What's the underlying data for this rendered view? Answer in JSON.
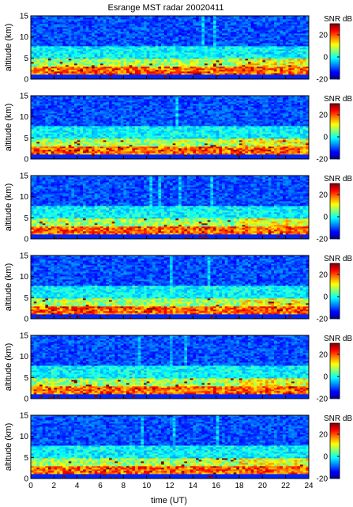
{
  "chart_data": {
    "type": "heatmap",
    "title": "Esrange MST radar 20020411",
    "xlabel": "time (UT)",
    "ylabel": "altitude (km)",
    "xlim": [
      0,
      24
    ],
    "ylim": [
      0,
      15
    ],
    "x_ticks": [
      "0",
      "2",
      "4",
      "6",
      "8",
      "10",
      "12",
      "14",
      "16",
      "18",
      "20",
      "22",
      "24"
    ],
    "y_ticks": [
      "0",
      "5",
      "10",
      "15"
    ],
    "colorbar": {
      "label": "SNR dB",
      "range": [
        -20,
        30
      ],
      "ticks": [
        "20",
        "0",
        "-20"
      ],
      "colormap": "jet"
    },
    "panel_count": 6,
    "grid": false,
    "description_of_values": "SNR strongest (15-30 dB) below about 3 km altitude, decreasing to about -15 dB above 10 km"
  }
}
